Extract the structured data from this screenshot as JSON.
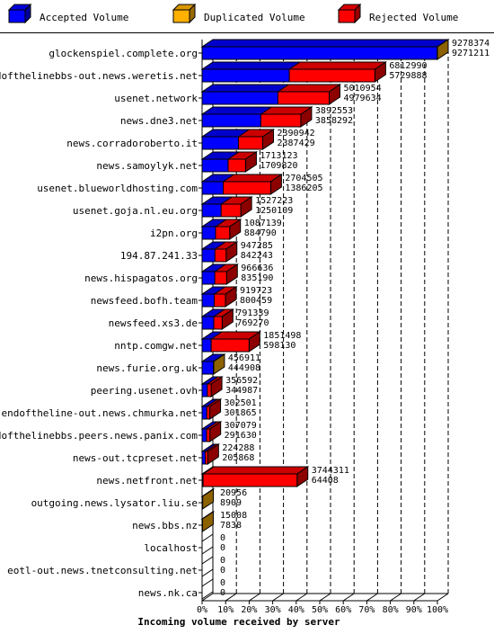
{
  "chart_data": {
    "type": "bar",
    "orientation": "horizontal",
    "stacked": false,
    "xlabel": "Incoming volume received by server",
    "xlim": [
      0,
      100
    ],
    "x_ticks": [
      "0%",
      "10%",
      "20%",
      "30%",
      "40%",
      "50%",
      "60%",
      "70%",
      "80%",
      "90%",
      "100%"
    ],
    "legend": {
      "placement": "top",
      "items": [
        {
          "key": "accepted",
          "label": "Accepted Volume",
          "color": "#0000ff"
        },
        {
          "key": "duplicated",
          "label": "Duplicated Volume",
          "color": "#ffb000"
        },
        {
          "key": "rejected",
          "label": "Rejected Volume",
          "color": "#ff0000"
        }
      ]
    },
    "categories": [
      {
        "name": "glockenspiel.complete.org",
        "total": 9278374,
        "accepted": 9271211,
        "rejected": 0,
        "duplicated": 7163,
        "total_label": "9278374",
        "accepted_label": "9271211"
      },
      {
        "name": "endofthelinebbs-out.news.weretis.net",
        "total": 6812990,
        "accepted": 5729888,
        "rejected": 1083102,
        "duplicated": 0,
        "total_label": "6812990",
        "accepted_label": "5729888"
      },
      {
        "name": "usenet.network",
        "total": 5010954,
        "accepted": 4979634,
        "rejected": 31320,
        "duplicated": 0,
        "total_label": "5010954",
        "accepted_label": "4979634"
      },
      {
        "name": "news.dne3.net",
        "total": 3892553,
        "accepted": 3858292,
        "rejected": 34261,
        "duplicated": 0,
        "total_label": "3892553",
        "accepted_label": "3858292"
      },
      {
        "name": "news.corradoroberto.it",
        "total": 2390942,
        "accepted": 2387429,
        "rejected": 3513,
        "duplicated": 0,
        "total_label": "2390942",
        "accepted_label": "2387429"
      },
      {
        "name": "news.samoylyk.net",
        "total": 1713123,
        "accepted": 1709820,
        "rejected": 3303,
        "duplicated": 0,
        "total_label": "1713123",
        "accepted_label": "1709820"
      },
      {
        "name": "usenet.blueworldhosting.com",
        "total": 2704505,
        "accepted": 1386205,
        "rejected": 1318300,
        "duplicated": 0,
        "total_label": "2704505",
        "accepted_label": "1386205"
      },
      {
        "name": "usenet.goja.nl.eu.org",
        "total": 1527223,
        "accepted": 1250109,
        "rejected": 277114,
        "duplicated": 0,
        "total_label": "1527223",
        "accepted_label": "1250109"
      },
      {
        "name": "i2pn.org",
        "total": 1087139,
        "accepted": 884790,
        "rejected": 202349,
        "duplicated": 0,
        "total_label": "1087139",
        "accepted_label": "884790"
      },
      {
        "name": "194.87.241.33",
        "total": 947285,
        "accepted": 842243,
        "rejected": 105042,
        "duplicated": 0,
        "total_label": "947285",
        "accepted_label": "842243"
      },
      {
        "name": "news.hispagatos.org",
        "total": 966636,
        "accepted": 835190,
        "rejected": 131446,
        "duplicated": 0,
        "total_label": "966636",
        "accepted_label": "835190"
      },
      {
        "name": "newsfeed.bofh.team",
        "total": 919723,
        "accepted": 800459,
        "rejected": 119264,
        "duplicated": 0,
        "total_label": "919723",
        "accepted_label": "800459"
      },
      {
        "name": "newsfeed.xs3.de",
        "total": 791339,
        "accepted": 769270,
        "rejected": 22069,
        "duplicated": 0,
        "total_label": "791339",
        "accepted_label": "769270"
      },
      {
        "name": "nntp.comgw.net",
        "total": 1851498,
        "accepted": 598130,
        "rejected": 1253368,
        "duplicated": 0,
        "total_label": "1851498",
        "accepted_label": "598130"
      },
      {
        "name": "news.furie.org.uk",
        "total": 456911,
        "accepted": 444908,
        "rejected": 0,
        "duplicated": 12003,
        "total_label": "456911",
        "accepted_label": "444908"
      },
      {
        "name": "peering.usenet.ovh",
        "total": 356592,
        "accepted": 344987,
        "rejected": 11605,
        "duplicated": 0,
        "total_label": "356592",
        "accepted_label": "344987"
      },
      {
        "name": "endoftheline-out.news.chmurka.net",
        "total": 302501,
        "accepted": 301865,
        "rejected": 636,
        "duplicated": 0,
        "total_label": "302501",
        "accepted_label": "301865"
      },
      {
        "name": "endofthelinebbs.peers.news.panix.com",
        "total": 307079,
        "accepted": 291630,
        "rejected": 15449,
        "duplicated": 0,
        "total_label": "307079",
        "accepted_label": "291630"
      },
      {
        "name": "news-out.tcpreset.net",
        "total": 224288,
        "accepted": 205868,
        "rejected": 18420,
        "duplicated": 0,
        "total_label": "224288",
        "accepted_label": "205868"
      },
      {
        "name": "news.netfront.net",
        "total": 3744311,
        "accepted": 64408,
        "rejected": 3679903,
        "duplicated": 0,
        "total_label": "3744311",
        "accepted_label": "64408"
      },
      {
        "name": "outgoing.news.lysator.liu.se",
        "total": 20956,
        "accepted": 8909,
        "rejected": 0,
        "duplicated": 12047,
        "total_label": "20956",
        "accepted_label": "8909"
      },
      {
        "name": "news.bbs.nz",
        "total": 15008,
        "accepted": 7838,
        "rejected": 0,
        "duplicated": 7170,
        "total_label": "15008",
        "accepted_label": "7838"
      },
      {
        "name": "localhost",
        "total": 0,
        "accepted": 0,
        "rejected": 0,
        "duplicated": 0,
        "total_label": "0",
        "accepted_label": "0"
      },
      {
        "name": "eotl-out.news.tnetconsulting.net",
        "total": 0,
        "accepted": 0,
        "rejected": 0,
        "duplicated": 0,
        "total_label": "0",
        "accepted_label": "0"
      },
      {
        "name": "news.nk.ca",
        "total": 0,
        "accepted": 0,
        "rejected": 0,
        "duplicated": 0,
        "total_label": "0",
        "accepted_label": "0"
      }
    ]
  }
}
